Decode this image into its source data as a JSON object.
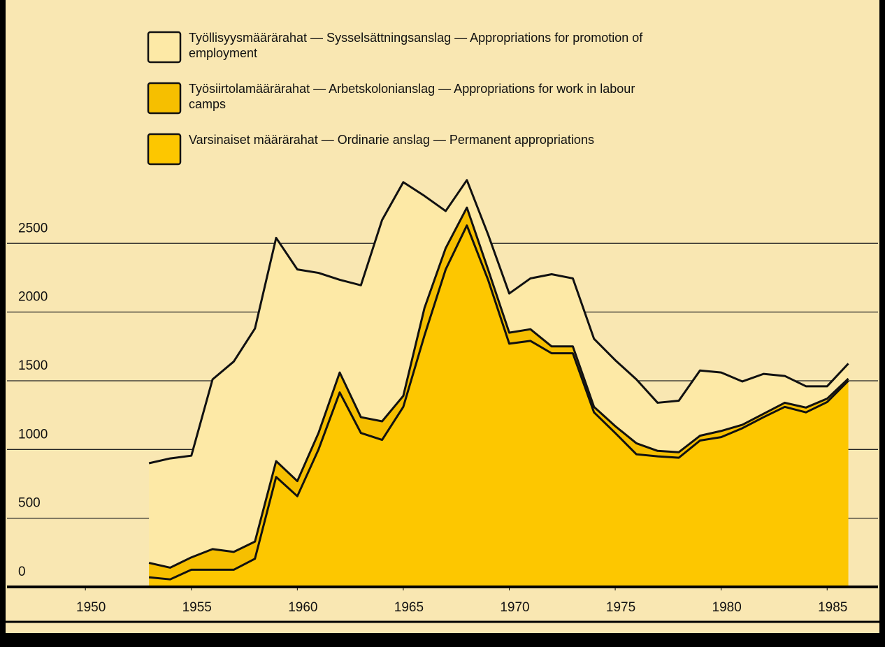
{
  "chart_data": {
    "type": "stacked_area",
    "x": [
      1953,
      1954,
      1955,
      1956,
      1957,
      1958,
      1959,
      1960,
      1961,
      1962,
      1963,
      1964,
      1965,
      1966,
      1967,
      1968,
      1969,
      1970,
      1971,
      1972,
      1973,
      1974,
      1975,
      1976,
      1977,
      1978,
      1979,
      1980,
      1981,
      1982,
      1983,
      1984,
      1985,
      1986
    ],
    "series": [
      {
        "name": "Työllisyysmäärärahat — Sysselsättningsanslag — Appropriations for promotion of employment",
        "color": "#fde9a6",
        "values": [
          725,
          795,
          740,
          1235,
          1385,
          1550,
          1625,
          1540,
          1165,
          675,
          960,
          1465,
          1555,
          815,
          270,
          200,
          255,
          285,
          370,
          525,
          495,
          495,
          480,
          465,
          350,
          375,
          475,
          425,
          315,
          290,
          195,
          155,
          90,
          110
        ]
      },
      {
        "name": "Työsiirtolamäärärahat — Arbetskolonianslag — Appropriations for work in labour camps",
        "color": "#f6bf00",
        "values": [
          105,
          85,
          90,
          150,
          130,
          125,
          115,
          110,
          120,
          145,
          115,
          135,
          80,
          200,
          155,
          130,
          75,
          80,
          85,
          50,
          50,
          40,
          50,
          80,
          40,
          40,
          35,
          45,
          25,
          25,
          30,
          35,
          25,
          15
        ]
      },
      {
        "name": "Varsinaiset määrärahat — Ordinarie anslag — Permanent appropriations",
        "color": "#fdc700",
        "values": [
          70,
          55,
          125,
          125,
          125,
          205,
          800,
          660,
          1000,
          1415,
          1120,
          1070,
          1310,
          1830,
          2310,
          2630,
          2235,
          1770,
          1790,
          1700,
          1700,
          1270,
          1120,
          965,
          950,
          940,
          1065,
          1090,
          1155,
          1235,
          1310,
          1270,
          1345,
          1500
        ]
      }
    ],
    "xlim": [
      1946.3,
      1987.4
    ],
    "xticks": [
      1950,
      1955,
      1960,
      1965,
      1970,
      1975,
      1980,
      1985
    ],
    "ylim": [
      0,
      4230
    ],
    "yticks": [
      0,
      500,
      1000,
      1500,
      2000,
      2500
    ],
    "grid": true
  }
}
